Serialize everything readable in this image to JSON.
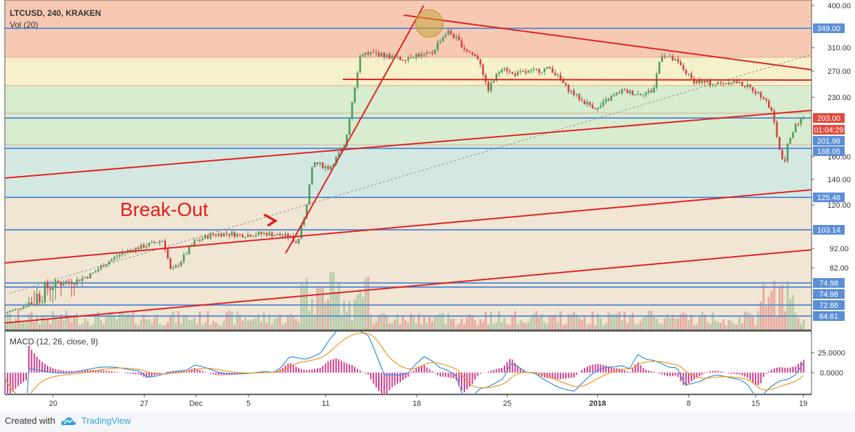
{
  "chart": {
    "title": "LTCUSD, 240, KRAKEN",
    "volume_label": "Vol (20)",
    "macd_label": "MACD (12, 26, close, 9)",
    "annotation": "Break-Out",
    "colors": {
      "trend_line": "#e02020",
      "level_line": "#5b8fd6",
      "fib_red": "#f4b79a",
      "fib_orange": "#f6cfa6",
      "fib_yellow": "#f3ecb8",
      "fib_green": "#cbe6bf",
      "fib_teal": "#c6e0d8",
      "fib_tan": "#ecdcc4",
      "candle_up": "#4a9a5a",
      "candle_down": "#d04040",
      "macd_line": "#2b8fd8",
      "signal_line": "#f0931c",
      "histogram": "#d63a8a",
      "price_badge": "#e04b3c",
      "level_badge": "#5b8fd6"
    }
  },
  "chart_data": {
    "type": "line",
    "price_scale_ticks": [
      "400.00",
      "310.00",
      "270.00",
      "230.00",
      "160.00",
      "140.00",
      "120.00",
      "92.00",
      "82.00"
    ],
    "price_scale_badges": [
      {
        "label": "349.00",
        "kind": "level"
      },
      {
        "label": "203.00",
        "kind": "price"
      },
      {
        "label": "01:04:29",
        "kind": "price"
      },
      {
        "label": "201.96",
        "kind": "level"
      },
      {
        "label": "168.05",
        "kind": "level"
      },
      {
        "label": "125.48",
        "kind": "level"
      },
      {
        "label": "103.14",
        "kind": "level"
      },
      {
        "label": "74.98",
        "kind": "level"
      },
      {
        "label": "74.98",
        "kind": "level"
      },
      {
        "label": "72.86",
        "kind": "level"
      },
      {
        "label": "64.61",
        "kind": "level"
      }
    ],
    "macd_scale_ticks": [
      "25.0000",
      "0.0000"
    ],
    "x_ticks": [
      "20",
      "27",
      "Dec",
      "5",
      "11",
      "18",
      "25",
      "2018",
      "8",
      "15",
      "19"
    ],
    "horizontal_levels": [
      349,
      203,
      168.05,
      125.48,
      103.14,
      74.98,
      72.86,
      64.61
    ],
    "series": [
      {
        "values": [
          [
            0,
            67
          ],
          [
            3,
            73
          ],
          [
            6,
            75
          ],
          [
            9,
            76
          ],
          [
            11,
            79
          ],
          [
            13,
            85
          ],
          [
            15,
            90
          ],
          [
            18,
            94
          ],
          [
            20,
            97
          ],
          [
            21,
            80
          ],
          [
            22,
            84
          ],
          [
            24,
            96
          ],
          [
            26,
            100
          ],
          [
            28,
            101
          ],
          [
            30,
            100
          ],
          [
            33,
            101
          ],
          [
            36,
            99
          ],
          [
            37,
            95
          ],
          [
            38,
            115
          ],
          [
            39,
            155
          ],
          [
            41,
            150
          ],
          [
            43,
            170
          ],
          [
            44,
            230
          ],
          [
            45,
            300
          ],
          [
            47,
            300
          ],
          [
            50,
            290
          ],
          [
            52,
            298
          ],
          [
            53,
            297
          ],
          [
            54,
            300
          ],
          [
            55,
            325
          ],
          [
            56,
            343
          ],
          [
            57,
            330
          ],
          [
            58,
            310
          ],
          [
            60,
            290
          ],
          [
            61,
            240
          ],
          [
            63,
            280
          ],
          [
            64,
            265
          ],
          [
            66,
            268
          ],
          [
            69,
            275
          ],
          [
            71,
            245
          ],
          [
            73,
            225
          ],
          [
            75,
            215
          ],
          [
            76,
            225
          ],
          [
            78,
            240
          ],
          [
            80,
            235
          ],
          [
            82,
            240
          ],
          [
            83,
            300
          ],
          [
            85,
            285
          ],
          [
            87,
            255
          ],
          [
            90,
            250
          ],
          [
            92,
            255
          ],
          [
            94,
            246
          ],
          [
            96,
            230
          ],
          [
            97,
            210
          ],
          [
            98,
            165
          ],
          [
            98.5,
            150
          ],
          [
            99,
            175
          ],
          [
            100,
            195
          ],
          [
            101,
            205
          ]
        ]
      }
    ]
  },
  "footer": {
    "created_with": "Created with",
    "brand": "TradingView",
    "logo_icon": "tradingview-cloud-icon"
  }
}
